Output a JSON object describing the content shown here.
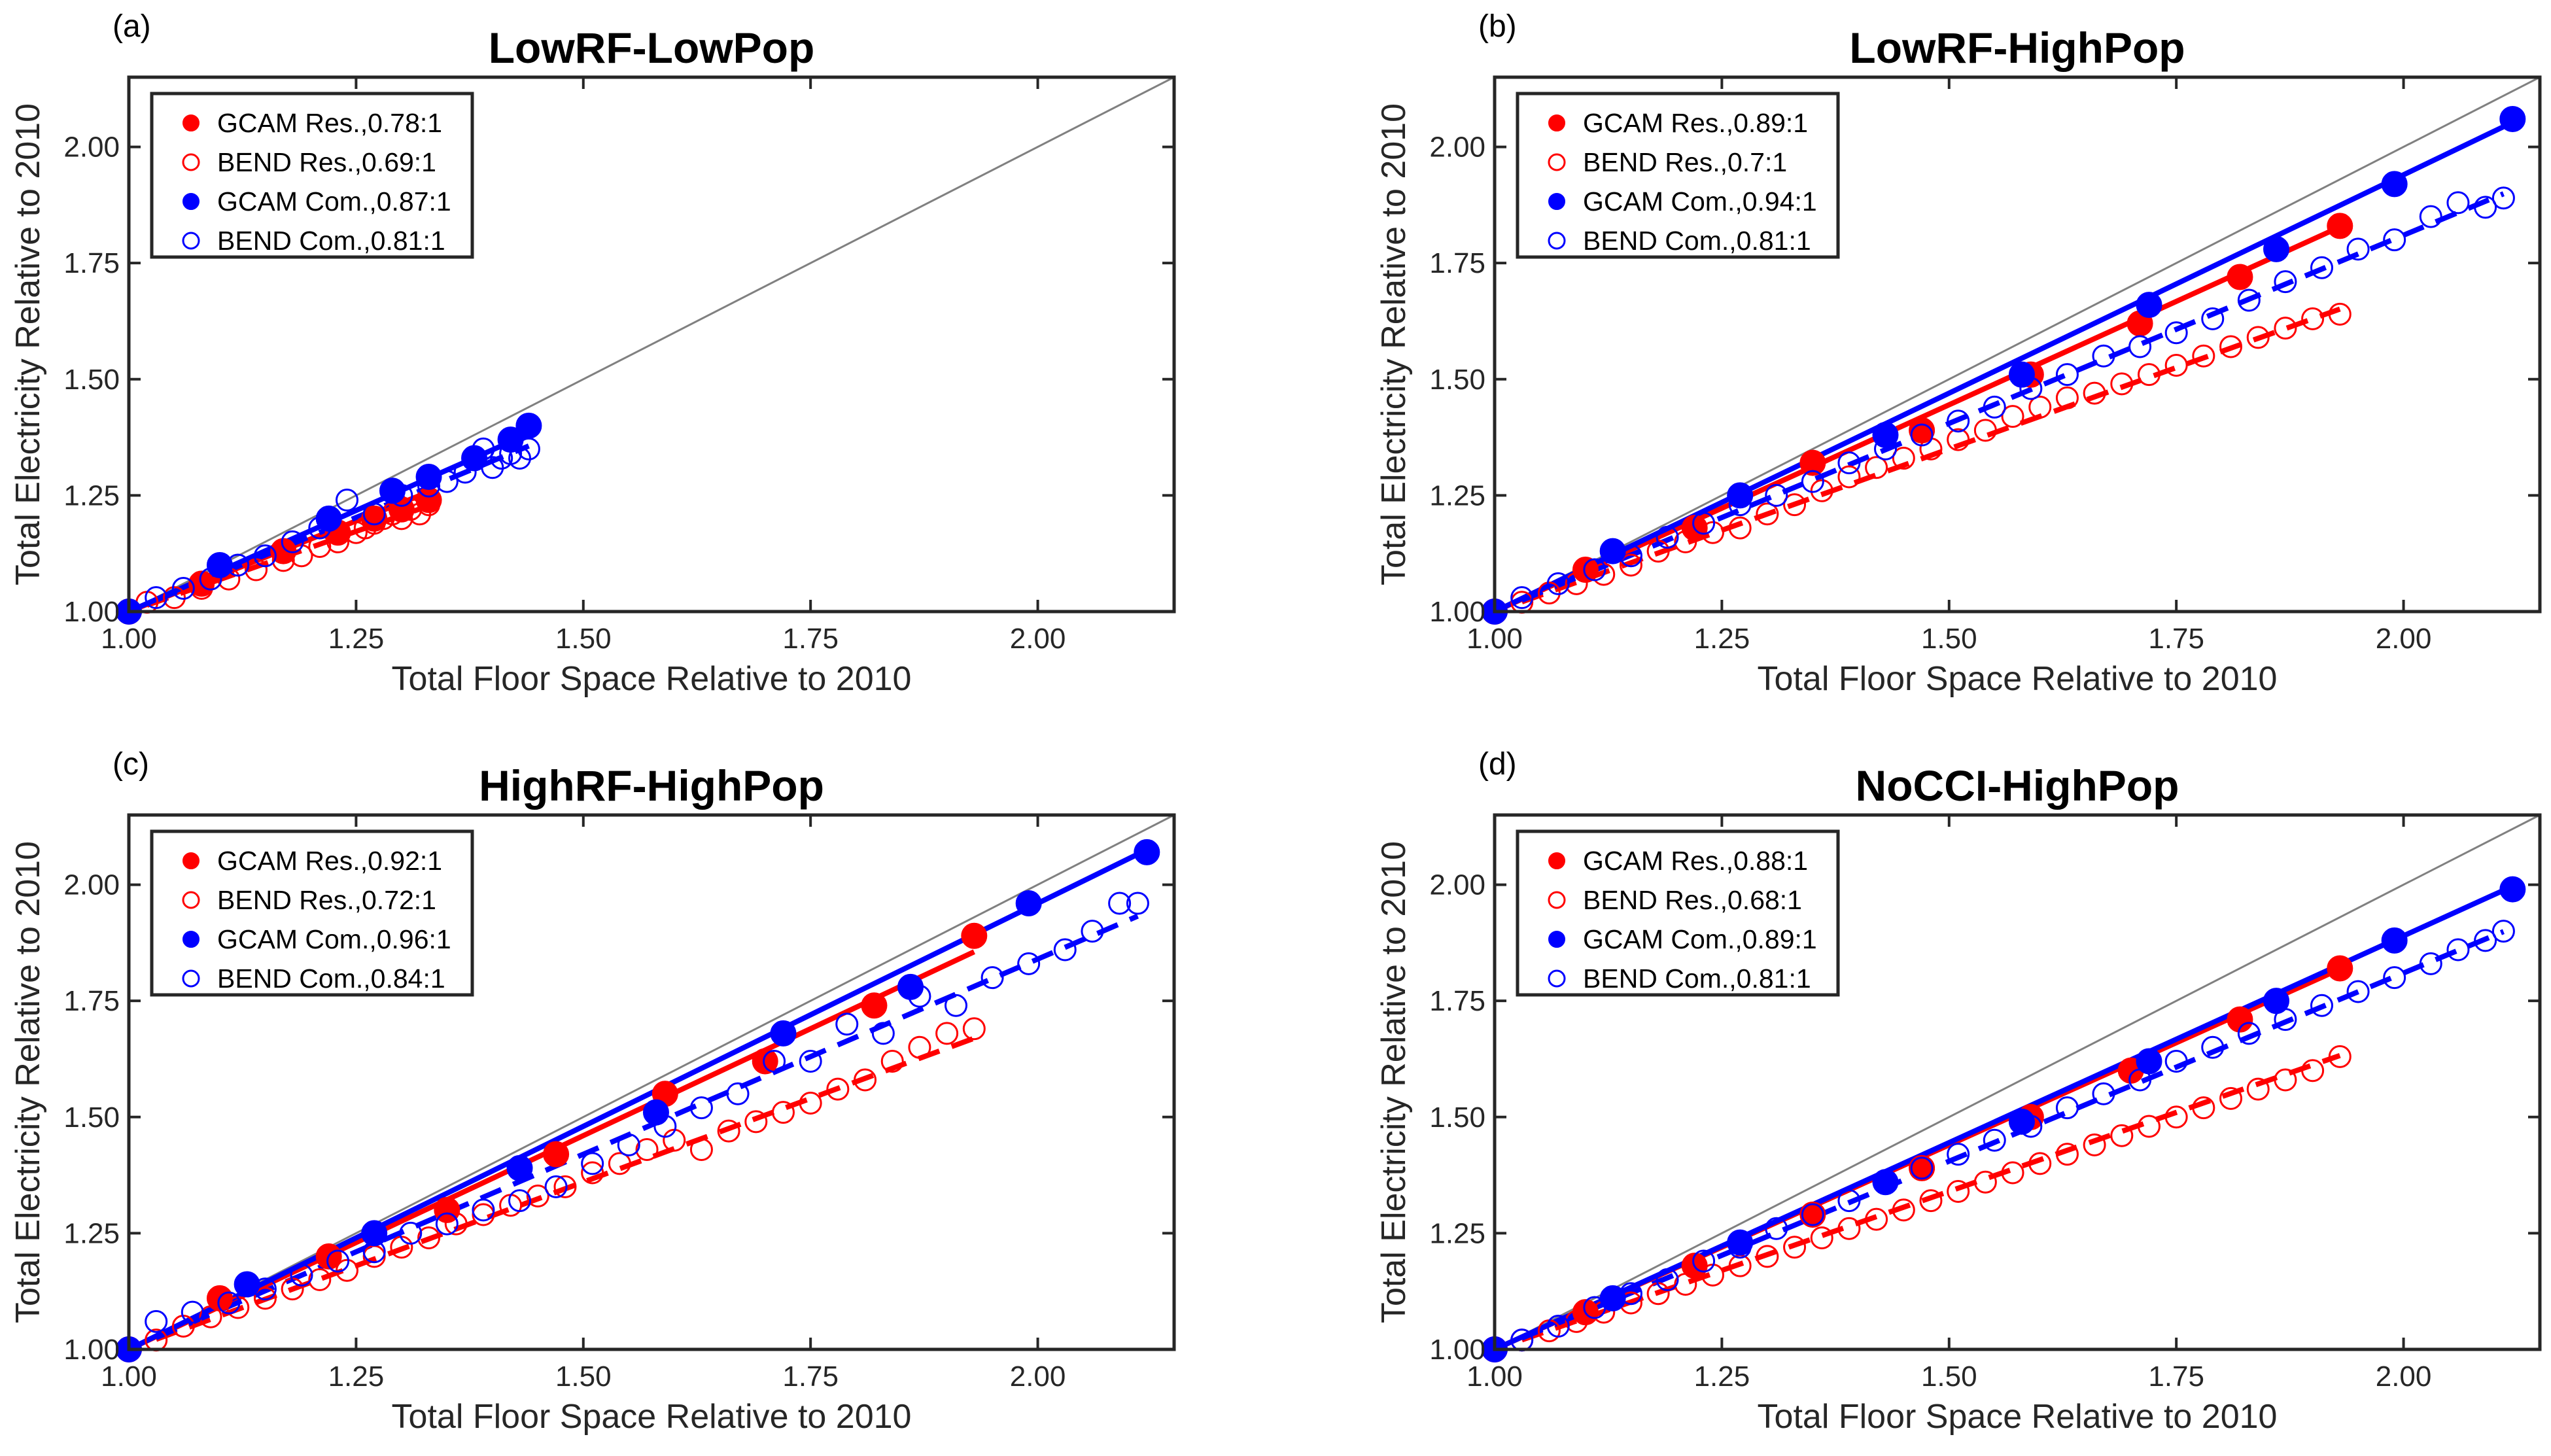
{
  "chart_data": [
    {
      "type": "scatter",
      "panel_label": "(a)",
      "title": "LowRF-LowPop",
      "xlabel": "Total Floor Space Relative to 2010",
      "ylabel": "Total Electricity Relative to 2010",
      "xlim": [
        1.0,
        2.15
      ],
      "ylim": [
        1.0,
        2.15
      ],
      "xticks": [
        "1.00",
        "1.25",
        "1.50",
        "1.75",
        "2.00"
      ],
      "yticks": [
        "1.00",
        "1.25",
        "1.50",
        "1.75",
        "2.00"
      ],
      "grid": false,
      "legend_position": "top-left",
      "series": [
        {
          "name": "GCAM Res.,0.78:1",
          "color": "#ff0000",
          "marker": "filled",
          "line": "solid",
          "slope": 0.78,
          "x": [
            1.0,
            1.08,
            1.17,
            1.23,
            1.27,
            1.3,
            1.33
          ],
          "y": [
            1.0,
            1.06,
            1.13,
            1.17,
            1.2,
            1.22,
            1.24
          ]
        },
        {
          "name": "BEND Res.,0.69:1",
          "color": "#ff0000",
          "marker": "open",
          "line": "dashed",
          "slope": 0.69,
          "x": [
            1.02,
            1.05,
            1.08,
            1.11,
            1.14,
            1.17,
            1.19,
            1.21,
            1.23,
            1.25,
            1.26,
            1.27,
            1.28,
            1.29,
            1.3,
            1.31,
            1.32,
            1.33
          ],
          "y": [
            1.02,
            1.03,
            1.05,
            1.07,
            1.09,
            1.11,
            1.12,
            1.14,
            1.15,
            1.17,
            1.18,
            1.19,
            1.2,
            1.21,
            1.2,
            1.22,
            1.21,
            1.23
          ]
        },
        {
          "name": "GCAM Com.,0.87:1",
          "color": "#0000ff",
          "marker": "filled",
          "line": "solid",
          "slope": 0.87,
          "x": [
            1.0,
            1.1,
            1.22,
            1.29,
            1.33,
            1.38,
            1.42,
            1.44
          ],
          "y": [
            1.0,
            1.1,
            1.2,
            1.26,
            1.29,
            1.33,
            1.37,
            1.4
          ]
        },
        {
          "name": "BEND Com.,0.81:1",
          "color": "#0000ff",
          "marker": "open",
          "line": "dashed",
          "slope": 0.81,
          "x": [
            1.03,
            1.06,
            1.09,
            1.12,
            1.15,
            1.18,
            1.21,
            1.24,
            1.27,
            1.3,
            1.33,
            1.35,
            1.37,
            1.39,
            1.4,
            1.41,
            1.42,
            1.43,
            1.44
          ],
          "y": [
            1.03,
            1.05,
            1.07,
            1.1,
            1.12,
            1.15,
            1.18,
            1.24,
            1.21,
            1.25,
            1.27,
            1.28,
            1.3,
            1.35,
            1.31,
            1.33,
            1.34,
            1.33,
            1.35
          ]
        }
      ]
    },
    {
      "type": "scatter",
      "panel_label": "(b)",
      "title": "LowRF-HighPop",
      "xlabel": "Total Floor Space Relative to 2010",
      "ylabel": "Total Electricity Relative to 2010",
      "xlim": [
        1.0,
        2.15
      ],
      "ylim": [
        1.0,
        2.15
      ],
      "xticks": [
        "1.00",
        "1.25",
        "1.50",
        "1.75",
        "2.00"
      ],
      "yticks": [
        "1.00",
        "1.25",
        "1.50",
        "1.75",
        "2.00"
      ],
      "grid": false,
      "legend_position": "top-left",
      "series": [
        {
          "name": "GCAM Res.,0.89:1",
          "color": "#ff0000",
          "marker": "filled",
          "line": "solid",
          "slope": 0.89,
          "x": [
            1.0,
            1.1,
            1.22,
            1.35,
            1.47,
            1.59,
            1.71,
            1.82,
            1.93
          ],
          "y": [
            1.0,
            1.09,
            1.18,
            1.32,
            1.39,
            1.51,
            1.62,
            1.72,
            1.83
          ]
        },
        {
          "name": "BEND Res.,0.7:1",
          "color": "#ff0000",
          "marker": "open",
          "line": "dashed",
          "slope": 0.7,
          "x": [
            1.03,
            1.06,
            1.09,
            1.12,
            1.15,
            1.18,
            1.21,
            1.24,
            1.27,
            1.3,
            1.33,
            1.36,
            1.39,
            1.42,
            1.45,
            1.48,
            1.51,
            1.54,
            1.57,
            1.6,
            1.63,
            1.66,
            1.69,
            1.72,
            1.75,
            1.78,
            1.81,
            1.84,
            1.87,
            1.9,
            1.93
          ],
          "y": [
            1.02,
            1.04,
            1.06,
            1.08,
            1.1,
            1.13,
            1.15,
            1.17,
            1.18,
            1.21,
            1.23,
            1.26,
            1.29,
            1.31,
            1.33,
            1.35,
            1.37,
            1.39,
            1.42,
            1.44,
            1.46,
            1.47,
            1.49,
            1.51,
            1.53,
            1.55,
            1.57,
            1.59,
            1.61,
            1.63,
            1.64
          ]
        },
        {
          "name": "GCAM Com.,0.94:1",
          "color": "#0000ff",
          "marker": "filled",
          "line": "solid",
          "slope": 0.94,
          "x": [
            1.0,
            1.13,
            1.27,
            1.43,
            1.58,
            1.72,
            1.86,
            1.99,
            2.12
          ],
          "y": [
            1.0,
            1.13,
            1.25,
            1.38,
            1.51,
            1.66,
            1.78,
            1.92,
            2.06
          ]
        },
        {
          "name": "BEND Com.,0.81:1",
          "color": "#0000ff",
          "marker": "open",
          "line": "dashed",
          "slope": 0.81,
          "x": [
            1.03,
            1.07,
            1.11,
            1.15,
            1.19,
            1.23,
            1.27,
            1.31,
            1.35,
            1.39,
            1.43,
            1.47,
            1.51,
            1.55,
            1.59,
            1.63,
            1.67,
            1.71,
            1.75,
            1.79,
            1.83,
            1.87,
            1.91,
            1.95,
            1.99,
            2.03,
            2.06,
            2.09,
            2.11
          ],
          "y": [
            1.03,
            1.06,
            1.09,
            1.12,
            1.16,
            1.19,
            1.23,
            1.25,
            1.28,
            1.32,
            1.35,
            1.38,
            1.41,
            1.44,
            1.48,
            1.51,
            1.55,
            1.57,
            1.6,
            1.63,
            1.67,
            1.71,
            1.74,
            1.78,
            1.8,
            1.85,
            1.88,
            1.87,
            1.89
          ]
        }
      ]
    },
    {
      "type": "scatter",
      "panel_label": "(c)",
      "title": "HighRF-HighPop",
      "xlabel": "Total Floor Space Relative to 2010",
      "ylabel": "Total Electricity Relative to 2010",
      "xlim": [
        1.0,
        2.15
      ],
      "ylim": [
        1.0,
        2.15
      ],
      "xticks": [
        "1.00",
        "1.25",
        "1.50",
        "1.75",
        "2.00"
      ],
      "yticks": [
        "1.00",
        "1.25",
        "1.50",
        "1.75",
        "2.00"
      ],
      "grid": false,
      "legend_position": "top-left",
      "series": [
        {
          "name": "GCAM Res.,0.92:1",
          "color": "#ff0000",
          "marker": "filled",
          "line": "solid",
          "slope": 0.92,
          "x": [
            1.0,
            1.1,
            1.22,
            1.35,
            1.47,
            1.59,
            1.7,
            1.82,
            1.93
          ],
          "y": [
            1.0,
            1.11,
            1.2,
            1.3,
            1.42,
            1.55,
            1.62,
            1.74,
            1.89
          ]
        },
        {
          "name": "BEND Res.,0.72:1",
          "color": "#ff0000",
          "marker": "open",
          "line": "dashed",
          "slope": 0.72,
          "x": [
            1.03,
            1.06,
            1.09,
            1.12,
            1.15,
            1.18,
            1.21,
            1.24,
            1.27,
            1.3,
            1.33,
            1.36,
            1.39,
            1.42,
            1.45,
            1.48,
            1.51,
            1.54,
            1.57,
            1.6,
            1.63,
            1.66,
            1.69,
            1.72,
            1.75,
            1.78,
            1.81,
            1.84,
            1.87,
            1.9,
            1.93
          ],
          "y": [
            1.02,
            1.05,
            1.07,
            1.09,
            1.11,
            1.13,
            1.15,
            1.17,
            1.2,
            1.22,
            1.24,
            1.27,
            1.29,
            1.31,
            1.33,
            1.35,
            1.38,
            1.4,
            1.43,
            1.45,
            1.43,
            1.47,
            1.49,
            1.51,
            1.53,
            1.56,
            1.58,
            1.62,
            1.65,
            1.68,
            1.69
          ]
        },
        {
          "name": "GCAM Com.,0.96:1",
          "color": "#0000ff",
          "marker": "filled",
          "line": "solid",
          "slope": 0.96,
          "x": [
            1.0,
            1.13,
            1.27,
            1.43,
            1.58,
            1.72,
            1.86,
            1.99,
            2.12
          ],
          "y": [
            1.0,
            1.14,
            1.25,
            1.39,
            1.51,
            1.68,
            1.78,
            1.96,
            2.07
          ]
        },
        {
          "name": "BEND Com.,0.84:1",
          "color": "#0000ff",
          "marker": "open",
          "line": "dashed",
          "slope": 0.84,
          "x": [
            1.03,
            1.07,
            1.11,
            1.15,
            1.19,
            1.23,
            1.27,
            1.31,
            1.35,
            1.39,
            1.43,
            1.47,
            1.51,
            1.55,
            1.59,
            1.63,
            1.67,
            1.71,
            1.75,
            1.79,
            1.83,
            1.87,
            1.91,
            1.95,
            1.99,
            2.03,
            2.06,
            2.09,
            2.11
          ],
          "y": [
            1.06,
            1.08,
            1.1,
            1.13,
            1.16,
            1.19,
            1.21,
            1.25,
            1.27,
            1.3,
            1.32,
            1.35,
            1.4,
            1.44,
            1.48,
            1.52,
            1.55,
            1.62,
            1.62,
            1.7,
            1.68,
            1.76,
            1.74,
            1.8,
            1.83,
            1.86,
            1.9,
            1.96,
            1.96
          ]
        }
      ]
    },
    {
      "type": "scatter",
      "panel_label": "(d)",
      "title": "NoCCI-HighPop",
      "xlabel": "Total Floor Space Relative to 2010",
      "ylabel": "Total Electricity Relative to 2010",
      "xlim": [
        1.0,
        2.15
      ],
      "ylim": [
        1.0,
        2.15
      ],
      "xticks": [
        "1.00",
        "1.25",
        "1.50",
        "1.75",
        "2.00"
      ],
      "yticks": [
        "1.00",
        "1.25",
        "1.50",
        "1.75",
        "2.00"
      ],
      "grid": false,
      "legend_position": "top-left",
      "series": [
        {
          "name": "GCAM Res.,0.88:1",
          "color": "#ff0000",
          "marker": "filled",
          "line": "solid",
          "slope": 0.88,
          "x": [
            1.0,
            1.1,
            1.22,
            1.35,
            1.47,
            1.59,
            1.7,
            1.82,
            1.93
          ],
          "y": [
            1.0,
            1.08,
            1.18,
            1.29,
            1.39,
            1.5,
            1.6,
            1.71,
            1.82
          ]
        },
        {
          "name": "BEND Res.,0.68:1",
          "color": "#ff0000",
          "marker": "open",
          "line": "dashed",
          "slope": 0.68,
          "x": [
            1.03,
            1.06,
            1.09,
            1.12,
            1.15,
            1.18,
            1.21,
            1.24,
            1.27,
            1.3,
            1.33,
            1.36,
            1.39,
            1.42,
            1.45,
            1.48,
            1.51,
            1.54,
            1.57,
            1.6,
            1.63,
            1.66,
            1.69,
            1.72,
            1.75,
            1.78,
            1.81,
            1.84,
            1.87,
            1.9,
            1.93
          ],
          "y": [
            1.02,
            1.04,
            1.06,
            1.08,
            1.1,
            1.12,
            1.14,
            1.16,
            1.18,
            1.2,
            1.22,
            1.24,
            1.26,
            1.28,
            1.3,
            1.32,
            1.34,
            1.36,
            1.38,
            1.4,
            1.42,
            1.44,
            1.46,
            1.48,
            1.5,
            1.52,
            1.54,
            1.56,
            1.58,
            1.6,
            1.63
          ]
        },
        {
          "name": "GCAM Com.,0.89:1",
          "color": "#0000ff",
          "marker": "filled",
          "line": "solid",
          "slope": 0.89,
          "x": [
            1.0,
            1.13,
            1.27,
            1.43,
            1.58,
            1.72,
            1.86,
            1.99,
            2.12
          ],
          "y": [
            1.0,
            1.11,
            1.23,
            1.36,
            1.49,
            1.62,
            1.75,
            1.88,
            1.99
          ]
        },
        {
          "name": "BEND Com.,0.81:1",
          "color": "#0000ff",
          "marker": "open",
          "line": "dashed",
          "slope": 0.81,
          "x": [
            1.03,
            1.07,
            1.11,
            1.15,
            1.19,
            1.23,
            1.27,
            1.31,
            1.35,
            1.39,
            1.43,
            1.47,
            1.51,
            1.55,
            1.59,
            1.63,
            1.67,
            1.71,
            1.75,
            1.79,
            1.83,
            1.87,
            1.91,
            1.95,
            1.99,
            2.03,
            2.06,
            2.09,
            2.11
          ],
          "y": [
            1.02,
            1.05,
            1.09,
            1.12,
            1.15,
            1.19,
            1.22,
            1.26,
            1.29,
            1.32,
            1.36,
            1.39,
            1.42,
            1.45,
            1.48,
            1.52,
            1.55,
            1.58,
            1.62,
            1.65,
            1.68,
            1.71,
            1.74,
            1.77,
            1.8,
            1.83,
            1.86,
            1.88,
            1.9
          ]
        }
      ]
    }
  ]
}
